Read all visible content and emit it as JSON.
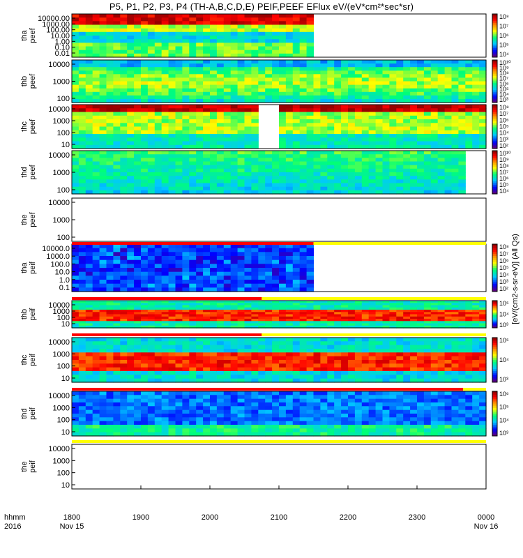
{
  "title": "P5, P1, P2, P3, P4 (TH-A,B,C,D,E) PEIF,PEEF EFlux eV/(eV*cm²*sec*sr)",
  "colorbar_unit_label": "[eV/(cm2-s-sr-eV)] (All Qs)",
  "x_axis": {
    "row_label_1": "hhmm",
    "row_label_2": "2016",
    "ticks": [
      "1800",
      "1900",
      "2000",
      "2100",
      "2200",
      "2300",
      "0000"
    ],
    "date_labels": [
      {
        "at": "1800",
        "text": "Nov 15"
      },
      {
        "at": "0000",
        "text": "Nov 16"
      }
    ]
  },
  "colors": {
    "spectrogram_scale": [
      "#800080",
      "#0000ff",
      "#00c8ff",
      "#00ff80",
      "#ffff00",
      "#ff8000",
      "#ff0000",
      "#b00000"
    ],
    "flag_red": "#ff0000",
    "flag_yellow": "#ffff00"
  },
  "chart_data": [
    {
      "type": "heatmap",
      "panel": "tha peef",
      "label": [
        "tha",
        "peef"
      ],
      "yticks": [
        "10000.00",
        "1000.00",
        "100.00",
        "10.00",
        "1.00",
        "0.10",
        "0.01"
      ],
      "data_end_hhmm": "2130",
      "colorbar_ticks": [
        "10⁸",
        "10⁷",
        "10⁶",
        "10⁵",
        "10⁴"
      ]
    },
    {
      "type": "heatmap",
      "panel": "thb peef",
      "label": [
        "thb",
        "peef"
      ],
      "yticks": [
        "10000",
        "1000",
        "100"
      ],
      "data_end_hhmm": "0000",
      "colorbar_ticks": [
        "10¹⁰",
        "10⁹",
        "10⁸",
        "10⁷",
        "10⁶",
        "10⁵",
        "10⁴",
        "10³"
      ]
    },
    {
      "type": "heatmap",
      "panel": "thc peef",
      "label": [
        "thc",
        "peef"
      ],
      "yticks": [
        "10000",
        "1000",
        "100",
        "10"
      ],
      "data_end_hhmm": "0000",
      "gap": [
        "2045",
        "2100"
      ],
      "colorbar_ticks": [
        "10⁸",
        "10⁷",
        "10⁶",
        "10⁵",
        "10⁴",
        "10³",
        "10²"
      ]
    },
    {
      "type": "heatmap",
      "panel": "thd peef",
      "label": [
        "thd",
        "peef"
      ],
      "yticks": [
        "10000",
        "1000",
        "100"
      ],
      "data_end_hhmm": "0000",
      "gap": [
        "2345",
        "2355"
      ],
      "colorbar_ticks": [
        "10¹⁰",
        "10⁹",
        "10⁸",
        "10⁷",
        "10⁶",
        "10⁵",
        "10⁴"
      ]
    },
    {
      "type": "heatmap",
      "panel": "the peef",
      "label": [
        "the",
        "peef"
      ],
      "yticks": [
        "10000",
        "1000",
        "100"
      ],
      "data_end_hhmm": "none",
      "colorbar_ticks": []
    },
    {
      "type": "heatmap",
      "panel": "tha peif",
      "label": [
        "tha",
        "peif"
      ],
      "yticks": [
        "10000.0",
        "1000.0",
        "100.0",
        "10.0",
        "1.0",
        "0.1"
      ],
      "data_end_hhmm": "2130",
      "colorbar_ticks": [
        "10⁸",
        "10⁷",
        "10⁶",
        "10⁵",
        "10⁴",
        "10³",
        "10²"
      ]
    },
    {
      "type": "heatmap",
      "panel": "thb peif",
      "label": [
        "thb",
        "peif"
      ],
      "yticks": [
        "10000",
        "1000",
        "100",
        "10"
      ],
      "data_end_hhmm": "0000",
      "colorbar_ticks": [
        "10⁵",
        "10⁴",
        "10³"
      ]
    },
    {
      "type": "heatmap",
      "panel": "thc peif",
      "label": [
        "thc",
        "peif"
      ],
      "yticks": [
        "10000",
        "1000",
        "100",
        "10"
      ],
      "data_end_hhmm": "0000",
      "colorbar_ticks": [
        "10⁵",
        "10⁴",
        "10³"
      ]
    },
    {
      "type": "heatmap",
      "panel": "thd peif",
      "label": [
        "thd",
        "peif"
      ],
      "yticks": [
        "10000",
        "1000",
        "100",
        "10"
      ],
      "data_end_hhmm": "0000",
      "colorbar_ticks": [
        "10⁶",
        "10⁵",
        "10⁴",
        "10³"
      ]
    },
    {
      "type": "heatmap",
      "panel": "the peif",
      "label": [
        "the",
        "peif"
      ],
      "yticks": [
        "10000",
        "1000",
        "100",
        "10"
      ],
      "data_end_hhmm": "none",
      "colorbar_ticks": []
    }
  ]
}
